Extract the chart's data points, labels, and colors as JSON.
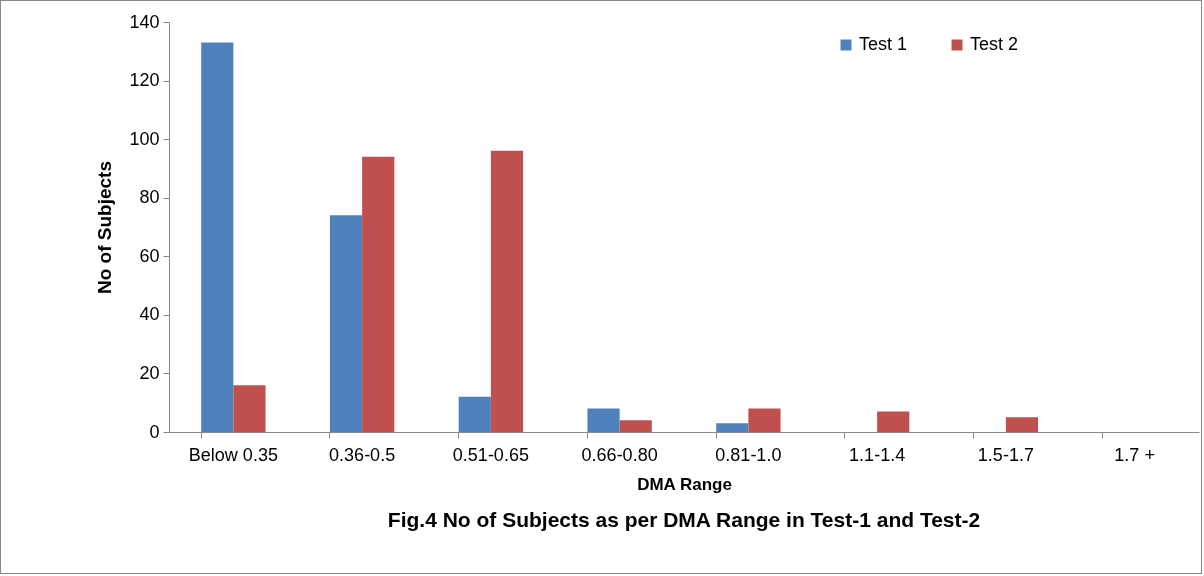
{
  "chart_data": {
    "type": "bar",
    "title": "Fig.4 No of Subjects as per DMA Range in Test-1 and Test-2",
    "xlabel": "DMA Range",
    "ylabel": "No of Subjects",
    "categories": [
      "Below 0.35",
      "0.36-0.5",
      "0.51-0.65",
      "0.66-0.80",
      "0.81-1.0",
      "1.1-1.4",
      "1.5-1.7",
      "1.7 +"
    ],
    "series": [
      {
        "name": "Test 1",
        "color": "#4f81bd",
        "values": [
          133,
          74,
          12,
          8,
          3,
          null,
          null,
          null
        ]
      },
      {
        "name": "Test 2",
        "color": "#c0504d",
        "values": [
          16,
          94,
          96,
          4,
          8,
          7,
          5,
          null
        ]
      }
    ],
    "ylim": [
      0,
      140
    ],
    "yticks": [
      0,
      20,
      40,
      60,
      80,
      100,
      120,
      140
    ],
    "grid": false,
    "legend": "top right"
  }
}
